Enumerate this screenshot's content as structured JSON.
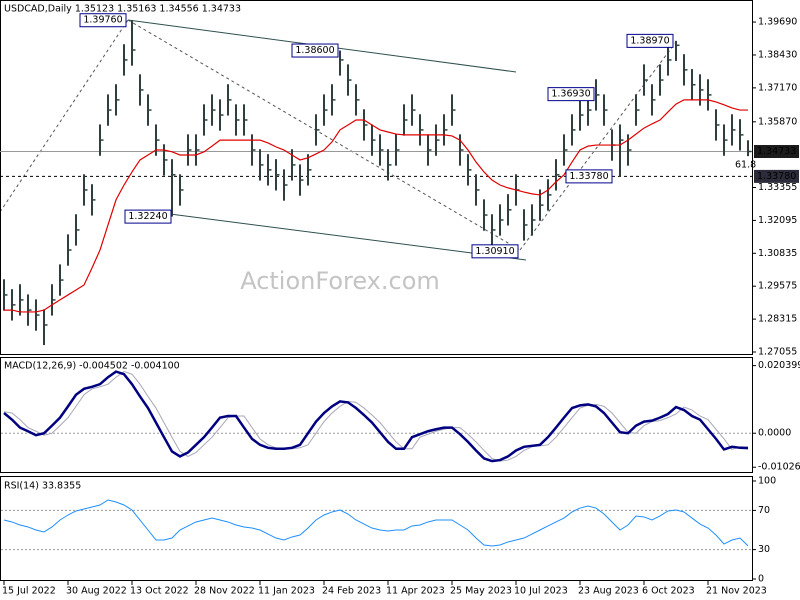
{
  "watermark": "ActionForex.com",
  "chart_data": [
    {
      "type": "ohlc",
      "title": "USDCAD,Daily  1.35123 1.35163 1.34556 1.34733",
      "color": "#2f3f3f",
      "categories": [
        "15 Jul 2022",
        null,
        null,
        null,
        null,
        null,
        null,
        null,
        "30 Aug 2022",
        null,
        null,
        null,
        null,
        null,
        null,
        null,
        "13 Oct 2022",
        null,
        null,
        null,
        null,
        null,
        null,
        null,
        "28 Nov 2022",
        null,
        null,
        null,
        null,
        null,
        null,
        null,
        "11 Jan 2023",
        null,
        null,
        null,
        null,
        null,
        null,
        null,
        "24 Feb 2023",
        null,
        null,
        null,
        null,
        null,
        null,
        null,
        "11 Apr 2023",
        null,
        null,
        null,
        null,
        null,
        null,
        null,
        "25 May 2023",
        null,
        null,
        null,
        null,
        null,
        null,
        null,
        "10 Jul 2023",
        null,
        null,
        null,
        null,
        null,
        null,
        null,
        "23 Aug 2023",
        null,
        null,
        null,
        null,
        null,
        null,
        null,
        "6 Oct 2023",
        null,
        null,
        null,
        null,
        null,
        null,
        null,
        "21 Nov 2023",
        null,
        null,
        null,
        null,
        null
      ],
      "high": [
        1.2984,
        1.2946,
        1.2965,
        1.2926,
        1.2907,
        1.2869,
        1.2965,
        1.3041,
        1.3156,
        1.3233,
        1.3386,
        1.3348,
        1.3577,
        1.3692,
        1.3731,
        1.3884,
        1.3976,
        1.3769,
        1.3692,
        1.3577,
        1.3501,
        1.3444,
        1.3386,
        1.3539,
        1.3539,
        1.3654,
        1.3692,
        1.3673,
        1.3731,
        1.3654,
        1.3654,
        1.3539,
        1.3482,
        1.3463,
        1.3444,
        1.3405,
        1.3482,
        1.3424,
        1.3463,
        1.3616,
        1.3692,
        1.3731,
        1.386,
        1.3807,
        1.3731,
        1.3635,
        1.3577,
        1.3539,
        1.3482,
        1.3539,
        1.3654,
        1.3692,
        1.3616,
        1.3539,
        1.3577,
        1.3616,
        1.3692,
        1.3539,
        1.3463,
        1.3386,
        1.329,
        1.3233,
        1.3271,
        1.331,
        1.3386,
        1.3252,
        1.3271,
        1.3328,
        1.3367,
        1.3444,
        1.3539,
        1.3616,
        1.3673,
        1.3692,
        1.375,
        1.3692,
        1.3558,
        1.3577,
        1.3539,
        1.3692,
        1.3807,
        1.3731,
        1.3807,
        1.3884,
        1.3897,
        1.3846,
        1.3789,
        1.3769,
        1.375,
        1.3635,
        1.3577,
        1.3616,
        1.3597,
        1.35163
      ],
      "low": [
        1.2864,
        1.2826,
        1.2845,
        1.2806,
        1.2787,
        1.2732,
        1.2845,
        1.2921,
        1.3036,
        1.3113,
        1.3266,
        1.3228,
        1.3457,
        1.3572,
        1.3611,
        1.3764,
        1.3802,
        1.3649,
        1.3572,
        1.3457,
        1.3381,
        1.3224,
        1.3266,
        1.3419,
        1.3419,
        1.3534,
        1.3572,
        1.3553,
        1.3611,
        1.3534,
        1.3534,
        1.3419,
        1.3362,
        1.3343,
        1.3324,
        1.3285,
        1.3362,
        1.3304,
        1.3343,
        1.3496,
        1.3572,
        1.3611,
        1.3764,
        1.3687,
        1.3611,
        1.3515,
        1.3457,
        1.3419,
        1.3362,
        1.3419,
        1.3534,
        1.3572,
        1.3496,
        1.3419,
        1.3457,
        1.3496,
        1.3572,
        1.3419,
        1.3343,
        1.3266,
        1.317,
        1.3091,
        1.3151,
        1.319,
        1.3266,
        1.3132,
        1.3151,
        1.3208,
        1.3247,
        1.3324,
        1.3419,
        1.3496,
        1.3553,
        1.3572,
        1.363,
        1.3572,
        1.3438,
        1.3378,
        1.3419,
        1.3572,
        1.3687,
        1.3611,
        1.3687,
        1.3764,
        1.382,
        1.3726,
        1.3669,
        1.3649,
        1.363,
        1.3515,
        1.3457,
        1.3496,
        1.3477,
        1.34556
      ],
      "close": [
        1.2924,
        1.2886,
        1.2905,
        1.2866,
        1.2847,
        1.2809,
        1.2905,
        1.2981,
        1.3096,
        1.3173,
        1.3326,
        1.3288,
        1.3517,
        1.3632,
        1.3671,
        1.3824,
        1.3862,
        1.3709,
        1.3632,
        1.3517,
        1.3441,
        1.3384,
        1.3326,
        1.3479,
        1.3479,
        1.3594,
        1.3632,
        1.3613,
        1.3671,
        1.3594,
        1.3594,
        1.3479,
        1.3422,
        1.3403,
        1.3384,
        1.3345,
        1.3422,
        1.3364,
        1.3403,
        1.3556,
        1.3632,
        1.3671,
        1.3824,
        1.3747,
        1.3671,
        1.3575,
        1.3517,
        1.3479,
        1.3422,
        1.3479,
        1.3594,
        1.3632,
        1.3556,
        1.3479,
        1.3517,
        1.3556,
        1.3632,
        1.3479,
        1.3403,
        1.3326,
        1.323,
        1.3173,
        1.3211,
        1.325,
        1.3326,
        1.3192,
        1.3211,
        1.3268,
        1.3307,
        1.3384,
        1.3479,
        1.3556,
        1.3613,
        1.3632,
        1.369,
        1.3632,
        1.3498,
        1.3517,
        1.3479,
        1.3632,
        1.3747,
        1.3671,
        1.3747,
        1.3824,
        1.388,
        1.3786,
        1.3729,
        1.3709,
        1.369,
        1.3575,
        1.3517,
        1.3556,
        1.3537,
        1.34733
      ],
      "lines": [
        {
          "color": "#e00000",
          "values": [
            1.2866,
            1.2866,
            1.2859,
            1.2859,
            1.2859,
            1.2866,
            1.2886,
            1.2905,
            1.2924,
            1.2943,
            1.2962,
            1.3027,
            1.3096,
            1.3192,
            1.3288,
            1.3345,
            1.3395,
            1.3441,
            1.346,
            1.3479,
            1.3479,
            1.3472,
            1.346,
            1.346,
            1.346,
            1.3472,
            1.3494,
            1.3517,
            1.3517,
            1.3517,
            1.3517,
            1.3517,
            1.3517,
            1.3506,
            1.3491,
            1.3479,
            1.346,
            1.3441,
            1.3449,
            1.3464,
            1.3479,
            1.351,
            1.3556,
            1.3575,
            1.3594,
            1.3594,
            1.3575,
            1.3556,
            1.3548,
            1.354,
            1.3537,
            1.3537,
            1.3537,
            1.3537,
            1.3537,
            1.3537,
            1.3533,
            1.3517,
            1.3479,
            1.3433,
            1.3395,
            1.3364,
            1.3345,
            1.3334,
            1.3326,
            1.3318,
            1.3311,
            1.3307,
            1.3326,
            1.3357,
            1.3384,
            1.3433,
            1.3479,
            1.3494,
            1.3498,
            1.3498,
            1.3498,
            1.3498,
            1.3517,
            1.354,
            1.3563,
            1.3579,
            1.3594,
            1.3625,
            1.3655,
            1.3671,
            1.3671,
            1.3671,
            1.3671,
            1.3663,
            1.3652,
            1.364,
            1.3632,
            1.3632
          ]
        }
      ],
      "ylim": [
        1.27055,
        1.4042
      ],
      "yticks": [
        {
          "value": 1.3969,
          "label": "1.39690"
        },
        {
          "value": 1.3843,
          "label": "1.38430"
        },
        {
          "value": 1.3717,
          "label": "1.37170"
        },
        {
          "value": 1.3587,
          "label": "1.35870"
        },
        1.33355,
        {
          "value": 1.32095,
          "label": "1.32095"
        },
        {
          "value": 1.30835,
          "label": "1.30835"
        },
        {
          "value": 1.29575,
          "label": "1.29575"
        },
        {
          "value": 1.28315,
          "label": "1.28315"
        },
        {
          "value": 1.27055,
          "label": "1.27055"
        }
      ],
      "annotations": [
        {
          "value": 1.3976,
          "label": "1.39760"
        },
        {
          "value": 1.386,
          "label": "1.38600"
        },
        {
          "value": 1.3224,
          "label": "1.32240"
        },
        {
          "value": 1.3091,
          "label": "1.30910"
        },
        {
          "value": 1.3693,
          "label": "1.36930"
        },
        {
          "value": 1.3378,
          "label": "1.33780"
        },
        {
          "value": 1.3897,
          "label": "1.38970"
        }
      ],
      "markers": [
        {
          "value": 1.34733,
          "label": "1.34733"
        },
        {
          "value": 1.3378,
          "label": "1.33780"
        }
      ],
      "fib_label": "61.8"
    },
    {
      "type": "line",
      "title": "MACD(12,26,9) -0.004502 -0.004100",
      "series": [
        {
          "color": "#000080",
          "values": [
            0.0061,
            0.0041,
            0.0017,
            0.0006,
            -0.0006,
            0,
            0.0023,
            0.0047,
            0.0081,
            0.0116,
            0.0134,
            0.014,
            0.0148,
            0.0169,
            0.0186,
            0.0178,
            0.0148,
            0.0111,
            0.0076,
            0.0032,
            -0.0012,
            -0.0055,
            -0.007,
            -0.0058,
            -0.0035,
            -0.0012,
            0.0017,
            0.0047,
            0.0052,
            0.0052,
            0.0017,
            -0.0017,
            -0.0035,
            -0.0044,
            -0.0047,
            -0.0047,
            -0.0044,
            -0.0035,
            0,
            0.0035,
            0.0061,
            0.0081,
            0.0096,
            0.0093,
            0.0076,
            0.0055,
            0.0032,
            0.0003,
            -0.0026,
            -0.0047,
            -0.0047,
            -0.0012,
            -0.0003,
            0.0006,
            0.0012,
            0.0017,
            0.0017,
            -0.0003,
            -0.0026,
            -0.0052,
            -0.0076,
            -0.0084,
            -0.0081,
            -0.007,
            -0.0052,
            -0.0041,
            -0.0038,
            -0.0035,
            -0.0012,
            0.0017,
            0.0047,
            0.0076,
            0.0084,
            0.0087,
            0.0081,
            0.0061,
            0.0032,
            0.0003,
            0,
            0.0023,
            0.0035,
            0.0038,
            0.0047,
            0.0058,
            0.0079,
            0.007,
            0.0052,
            0.0041,
            0.0012,
            -0.0017,
            -0.0049,
            -0.0041,
            -0.0044,
            -0.004502
          ]
        },
        {
          "color": "#a8a8b8",
          "values": [
            0.0065,
            0.0061,
            0.0041,
            0.0017,
            0.0006,
            -0.0006,
            0,
            0.0023,
            0.0047,
            0.0081,
            0.0116,
            0.0134,
            0.014,
            0.0148,
            0.0169,
            0.0186,
            0.0178,
            0.0148,
            0.0111,
            0.0076,
            0.0032,
            -0.0012,
            -0.0055,
            -0.007,
            -0.0058,
            -0.0035,
            -0.0012,
            0.0017,
            0.0047,
            0.0052,
            0.0052,
            0.0017,
            -0.0017,
            -0.0035,
            -0.0044,
            -0.0047,
            -0.0047,
            -0.0044,
            -0.0035,
            0,
            0.0035,
            0.0061,
            0.0081,
            0.0096,
            0.0093,
            0.0076,
            0.0055,
            0.0032,
            0.0003,
            -0.0026,
            -0.0047,
            -0.0047,
            -0.0012,
            -0.0003,
            0.0006,
            0.0012,
            0.0017,
            0.0017,
            -0.0003,
            -0.0026,
            -0.0052,
            -0.0076,
            -0.0084,
            -0.0081,
            -0.007,
            -0.0052,
            -0.0041,
            -0.0038,
            -0.0035,
            -0.0012,
            0.0017,
            0.0047,
            0.0076,
            0.0084,
            0.0087,
            0.0081,
            0.0061,
            0.0032,
            0.0003,
            0,
            0.0023,
            0.0035,
            0.0038,
            0.0047,
            0.0058,
            0.0079,
            0.007,
            0.0052,
            0.0041,
            0.0012,
            -0.0017,
            -0.0049,
            -0.0041,
            -0.0041
          ]
        }
      ],
      "ylim": [
        -0.0117,
        0.023
      ],
      "yticks": [
        0.020399,
        {
          "value": 0,
          "label": "0.0000"
        },
        -0.01026
      ],
      "levels": [
        0
      ]
    },
    {
      "type": "line",
      "title": "RSI(14) 33.8355",
      "series": [
        {
          "color": "#1e90ff",
          "values": [
            60.2,
            58.2,
            55.1,
            53.1,
            50.0,
            48.0,
            53.1,
            60.2,
            65.3,
            69.4,
            71.4,
            73.5,
            75.5,
            80.6,
            78.6,
            75.5,
            70.4,
            60.2,
            50.0,
            39.8,
            39.8,
            41.8,
            50.0,
            54.1,
            58.2,
            60.2,
            62.2,
            60.2,
            58.2,
            55.1,
            53.1,
            52.0,
            50.0,
            45.9,
            41.8,
            39.8,
            42.9,
            44.9,
            52.0,
            60.2,
            65.3,
            68.4,
            70.4,
            66.3,
            60.2,
            56.1,
            52.0,
            50.0,
            49.0,
            50.0,
            50.0,
            54.1,
            55.1,
            58.2,
            60.2,
            60.2,
            60.2,
            55.1,
            50.0,
            41.8,
            34.7,
            33.7,
            34.7,
            37.8,
            39.8,
            41.8,
            45.9,
            50.0,
            54.1,
            58.2,
            62.2,
            68.4,
            72.4,
            74.5,
            72.4,
            66.3,
            58.2,
            50.0,
            55.1,
            64.3,
            63.3,
            60.2,
            64.3,
            69.4,
            70.4,
            68.4,
            62.2,
            56.1,
            52.0,
            44.9,
            35.7,
            39.8,
            41.8,
            33.8355
          ]
        }
      ],
      "ylim": [
        0,
        100
      ],
      "yticks": [
        100,
        70,
        30,
        0
      ],
      "levels": [
        70,
        30
      ]
    }
  ]
}
